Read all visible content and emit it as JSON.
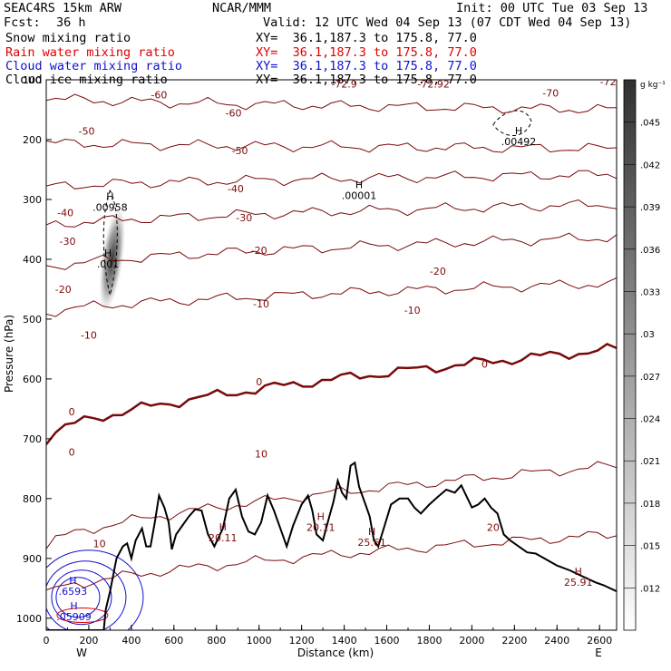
{
  "header": {
    "model": "SEAC4RS 15km ARW",
    "org": "NCAR/MMM",
    "init": "Init: 00 UTC Tue 03 Sep 13",
    "fcst_label": "Fcst:",
    "fcst_value": "36 h",
    "valid": "Valid: 12 UTC Wed 04 Sep 13 (07 CDT Wed 04 Sep 13)"
  },
  "fields": [
    {
      "name": "Snow mixing ratio",
      "xy": "XY=  36.1,187.3 to 175.8, 77.0",
      "color": "#000000"
    },
    {
      "name": "Rain water mixing ratio",
      "xy": "XY=  36.1,187.3 to 175.8, 77.0",
      "color": "#e00000"
    },
    {
      "name": "Cloud water mixing ratio",
      "xy": "XY=  36.1,187.3 to 175.8, 77.0",
      "color": "#1010d0"
    },
    {
      "name": "Cloud ice mixing ratio",
      "xy": "XY=  36.1,187.3 to 175.8, 77.0",
      "color": "#000000"
    }
  ],
  "colors": {
    "isotherm": "#7a0a0a",
    "zero_isotherm": "#7a0a0a",
    "terrain": "#000000",
    "cloud_water": "#1010d0",
    "rain": "#e00000",
    "snow": "#000000"
  },
  "chart_data": {
    "type": "line",
    "xlabel": "Distance (km)",
    "ylabel": "Pressure (hPa)",
    "xlim": [
      0,
      2680
    ],
    "ylim": [
      1020,
      100
    ],
    "xticks": [
      "0",
      "200",
      "400",
      "600",
      "800",
      "1000",
      "1200",
      "1400",
      "1600",
      "1800",
      "2000",
      "2200",
      "2400",
      "2600"
    ],
    "yticks": [
      "100",
      "200",
      "300",
      "400",
      "500",
      "600",
      "700",
      "800",
      "900",
      "1000"
    ],
    "direction_left": "W",
    "direction_right": "E",
    "colorbar": {
      "unit": "g kg⁻¹",
      "ticks": [
        ".045",
        ".042",
        ".039",
        ".036",
        ".033",
        ".03",
        ".027",
        ".024",
        ".021",
        ".018",
        ".015",
        ".012"
      ],
      "min": 0.009,
      "max": 0.048
    },
    "isotherms": [
      {
        "t": -72,
        "p0": 55,
        "p1": 55
      },
      {
        "t": -70,
        "p0": 85,
        "p1": 90
      },
      {
        "t": -60,
        "p0": 130,
        "p1": 150
      },
      {
        "t": -50,
        "p0": 205,
        "p1": 215
      },
      {
        "t": -40,
        "p0": 280,
        "p1": 258
      },
      {
        "t": -30,
        "p0": 345,
        "p1": 308
      },
      {
        "t": -20,
        "p0": 415,
        "p1": 363
      },
      {
        "t": -10,
        "p0": 490,
        "p1": 440
      },
      {
        "t": 0,
        "p0": 700,
        "p1": 550
      },
      {
        "t": 10,
        "p0": 880,
        "p1": 745
      },
      {
        "t": 20,
        "p0": 960,
        "p1": 860
      }
    ],
    "isotherm_labels": [
      {
        "text": "-72",
        "x": 2640,
        "p": 103
      },
      {
        "text": "-72.92",
        "x": 1820,
        "p": 107
      },
      {
        "text": "-72.9",
        "x": 1400,
        "p": 107
      },
      {
        "text": "-70",
        "x": 2370,
        "p": 122
      },
      {
        "text": "-60",
        "x": 530,
        "p": 125
      },
      {
        "text": "-60",
        "x": 880,
        "p": 155
      },
      {
        "text": "-50",
        "x": 190,
        "p": 186
      },
      {
        "text": "-50",
        "x": 910,
        "p": 218
      },
      {
        "text": "-40",
        "x": 90,
        "p": 322
      },
      {
        "text": "-40",
        "x": 890,
        "p": 282
      },
      {
        "text": "-30",
        "x": 100,
        "p": 370
      },
      {
        "text": "-30",
        "x": 930,
        "p": 330
      },
      {
        "text": "-20",
        "x": 80,
        "p": 450
      },
      {
        "text": "-20",
        "x": 1000,
        "p": 385
      },
      {
        "text": "-20",
        "x": 1840,
        "p": 420
      },
      {
        "text": "-10",
        "x": 200,
        "p": 527
      },
      {
        "text": "-10",
        "x": 1010,
        "p": 474
      },
      {
        "text": "-10",
        "x": 1720,
        "p": 485
      },
      {
        "text": "0",
        "x": 120,
        "p": 655
      },
      {
        "text": "0",
        "x": 1000,
        "p": 605
      },
      {
        "text": "0",
        "x": 2060,
        "p": 575
      },
      {
        "text": "0",
        "x": 120,
        "p": 722
      },
      {
        "text": "10",
        "x": 1010,
        "p": 725
      },
      {
        "text": "10",
        "x": 250,
        "p": 875
      },
      {
        "text": "20",
        "x": 2100,
        "p": 848
      }
    ],
    "highs": [
      {
        "label": ".00001",
        "x": 1470,
        "p": 290
      },
      {
        "label": ".00492",
        "x": 2220,
        "p": 200
      },
      {
        "label": ".00958",
        "x": 300,
        "p": 310
      },
      {
        "label": ".001",
        "x": 290,
        "p": 405
      },
      {
        "label": "20.11",
        "x": 830,
        "p": 862
      },
      {
        "label": "20.11",
        "x": 1290,
        "p": 845
      },
      {
        "label": "25.61",
        "x": 1530,
        "p": 870
      },
      {
        "label": "25.91",
        "x": 2500,
        "p": 937
      },
      {
        "label": ".6593",
        "x": 125,
        "p": 952
      },
      {
        "label": ".05909",
        "x": 130,
        "p": 994
      }
    ],
    "terrain": [
      [
        0,
        1020
      ],
      [
        270,
        1020
      ],
      [
        280,
        985
      ],
      [
        300,
        955
      ],
      [
        330,
        900
      ],
      [
        360,
        880
      ],
      [
        380,
        875
      ],
      [
        400,
        900
      ],
      [
        420,
        870
      ],
      [
        450,
        850
      ],
      [
        470,
        880
      ],
      [
        490,
        880
      ],
      [
        510,
        840
      ],
      [
        530,
        795
      ],
      [
        555,
        815
      ],
      [
        575,
        840
      ],
      [
        590,
        885
      ],
      [
        610,
        860
      ],
      [
        640,
        845
      ],
      [
        670,
        830
      ],
      [
        700,
        818
      ],
      [
        730,
        820
      ],
      [
        760,
        860
      ],
      [
        790,
        880
      ],
      [
        830,
        850
      ],
      [
        860,
        800
      ],
      [
        890,
        785
      ],
      [
        920,
        830
      ],
      [
        950,
        855
      ],
      [
        980,
        860
      ],
      [
        1010,
        840
      ],
      [
        1040,
        795
      ],
      [
        1070,
        820
      ],
      [
        1100,
        850
      ],
      [
        1130,
        880
      ],
      [
        1160,
        845
      ],
      [
        1200,
        810
      ],
      [
        1230,
        795
      ],
      [
        1250,
        820
      ],
      [
        1270,
        860
      ],
      [
        1300,
        870
      ],
      [
        1330,
        830
      ],
      [
        1350,
        805
      ],
      [
        1370,
        770
      ],
      [
        1390,
        790
      ],
      [
        1410,
        800
      ],
      [
        1430,
        745
      ],
      [
        1450,
        740
      ],
      [
        1470,
        780
      ],
      [
        1500,
        810
      ],
      [
        1520,
        830
      ],
      [
        1540,
        870
      ],
      [
        1560,
        880
      ],
      [
        1590,
        845
      ],
      [
        1620,
        810
      ],
      [
        1660,
        800
      ],
      [
        1700,
        800
      ],
      [
        1730,
        815
      ],
      [
        1760,
        825
      ],
      [
        1800,
        810
      ],
      [
        1840,
        797
      ],
      [
        1880,
        785
      ],
      [
        1920,
        790
      ],
      [
        1950,
        778
      ],
      [
        1980,
        800
      ],
      [
        2000,
        815
      ],
      [
        2030,
        810
      ],
      [
        2060,
        800
      ],
      [
        2090,
        815
      ],
      [
        2120,
        825
      ],
      [
        2150,
        860
      ],
      [
        2180,
        870
      ],
      [
        2220,
        880
      ],
      [
        2260,
        890
      ],
      [
        2300,
        892
      ],
      [
        2340,
        900
      ],
      [
        2400,
        912
      ],
      [
        2460,
        920
      ],
      [
        2520,
        930
      ],
      [
        2580,
        940
      ],
      [
        2620,
        945
      ],
      [
        2680,
        955
      ]
    ]
  }
}
